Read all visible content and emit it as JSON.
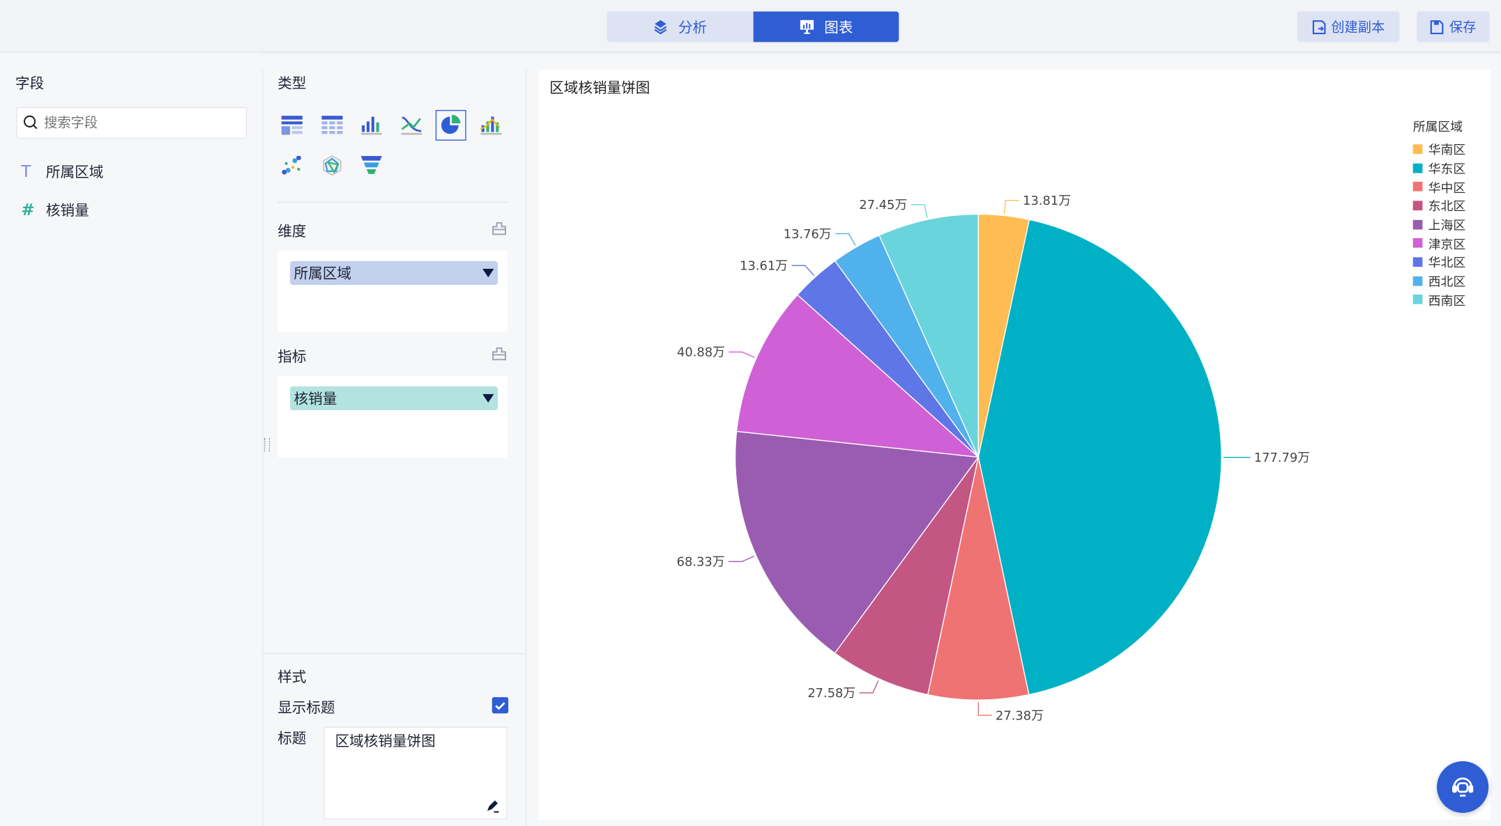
{
  "header": {
    "tabs": [
      {
        "label": "分析",
        "icon": "layers-icon",
        "active": false
      },
      {
        "label": "图表",
        "icon": "presentation-chart-icon",
        "active": true
      }
    ],
    "copy_label": "创建副本",
    "save_label": "保存"
  },
  "fields_panel": {
    "title": "字段",
    "search_placeholder": "搜索字段",
    "items": [
      {
        "type_icon": "T",
        "label": "所属区域"
      },
      {
        "type_icon": "#",
        "label": "核销量"
      }
    ]
  },
  "config_panel": {
    "type_title": "类型",
    "chart_types": [
      "table",
      "cross-table",
      "bar",
      "line",
      "pie",
      "bar-line",
      "scatter",
      "radar",
      "funnel"
    ],
    "selected_type": "pie",
    "dimension_title": "维度",
    "dimension_value": "所属区域",
    "metric_title": "指标",
    "metric_value": "核销量",
    "style_title": "样式",
    "show_title_label": "显示标题",
    "show_title_checked": true,
    "title_label": "标题",
    "title_value": "区域核销量饼图"
  },
  "colors": {
    "accent": "#2f5dd4",
    "dimension_chip": "#c2d0ee",
    "metric_chip": "#b2e3df"
  },
  "chart_data": {
    "type": "pie",
    "title": "区域核销量饼图",
    "legend_title": "所属区域",
    "legend_position": "top-right",
    "categories": [
      "华南区",
      "华东区",
      "华中区",
      "东北区",
      "上海区",
      "津京区",
      "华北区",
      "西北区",
      "西南区"
    ],
    "values": [
      13.81,
      177.79,
      27.38,
      27.58,
      68.33,
      40.88,
      13.61,
      13.76,
      27.45
    ],
    "labels": [
      "13.81万",
      "177.79万",
      "27.38万",
      "27.58万",
      "68.33万",
      "40.88万",
      "13.61万",
      "13.76万",
      "27.45万"
    ],
    "colors": [
      "#FFBC52",
      "#00B0C4",
      "#F07373",
      "#C45683",
      "#9A5CB0",
      "#D060D6",
      "#5E76E6",
      "#51B1EC",
      "#6AD4DD"
    ]
  }
}
